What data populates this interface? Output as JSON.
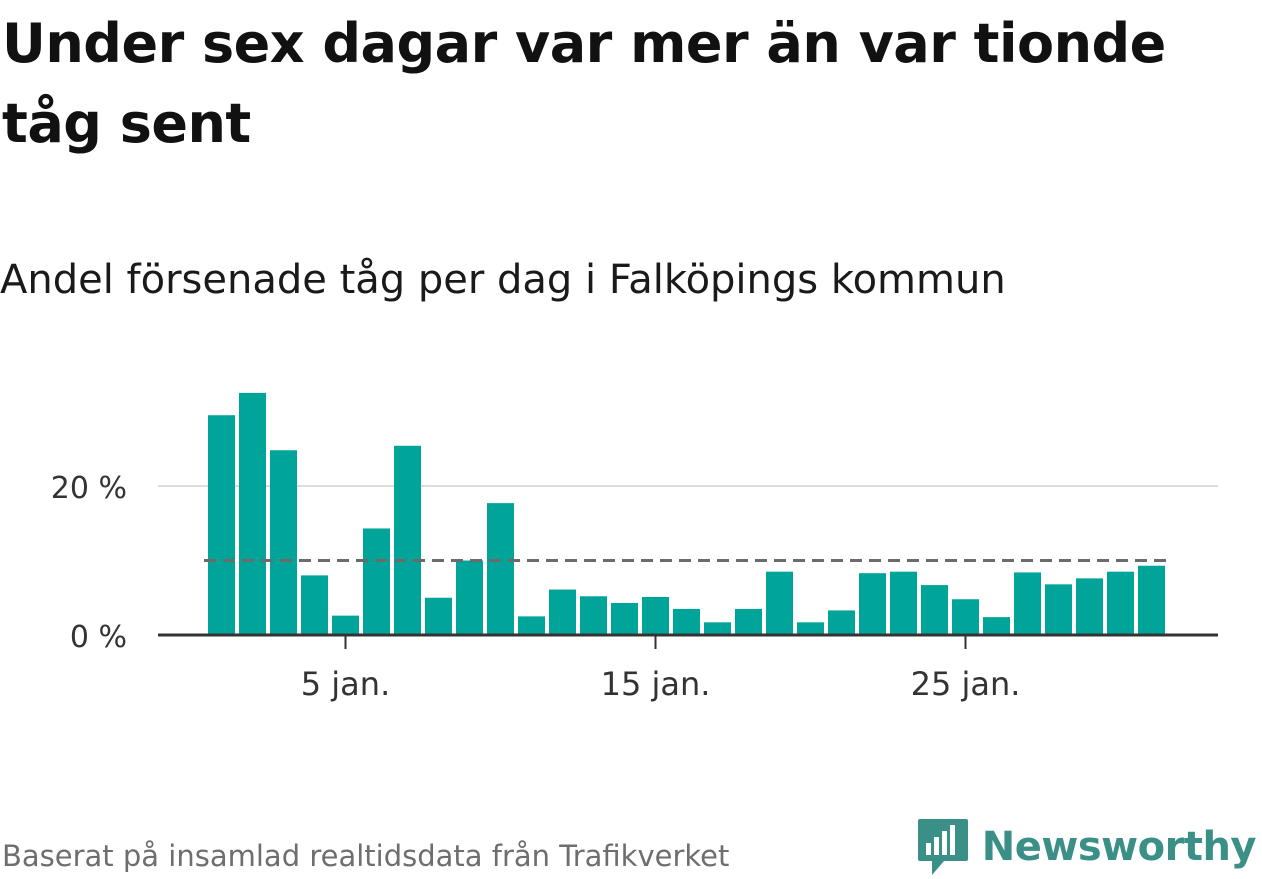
{
  "header": {
    "title": "Under sex dagar var mer än var tionde tåg sent",
    "subtitle": "Andel försenade tåg per dag i Falköpings kommun"
  },
  "footer": {
    "source": "Baserat på insamlad realtidsdata från Trafikverket",
    "brand": "Newsworthy"
  },
  "colors": {
    "bar": "#00a499",
    "reference_line": "#6b6b6b",
    "grid": "#dddddd",
    "axis": "#333333",
    "brand": "#3a8f87"
  },
  "chart_data": {
    "type": "bar",
    "x": [
      "2024-01-01",
      "2024-01-02",
      "2024-01-03",
      "2024-01-04",
      "2024-01-05",
      "2024-01-06",
      "2024-01-07",
      "2024-01-08",
      "2024-01-09",
      "2024-01-10",
      "2024-01-11",
      "2024-01-12",
      "2024-01-13",
      "2024-01-14",
      "2024-01-15",
      "2024-01-16",
      "2024-01-17",
      "2024-01-18",
      "2024-01-19",
      "2024-01-20",
      "2024-01-21",
      "2024-01-22",
      "2024-01-23",
      "2024-01-24",
      "2024-01-25",
      "2024-01-26",
      "2024-01-27",
      "2024-01-28",
      "2024-01-29",
      "2024-01-30",
      "2024-01-31",
      "2024-02-01"
    ],
    "values": [
      29.5,
      32.5,
      24.8,
      8.0,
      2.6,
      14.3,
      25.4,
      5.0,
      10.0,
      17.7,
      2.5,
      6.1,
      5.2,
      4.3,
      5.1,
      3.5,
      1.7,
      3.5,
      8.5,
      1.7,
      3.3,
      8.3,
      8.5,
      6.7,
      4.8,
      2.4,
      8.4,
      6.8,
      7.6,
      8.5,
      9.3,
      null
    ],
    "reference_line": 10,
    "ylim": [
      0,
      35
    ],
    "yticks": [
      {
        "value": 0,
        "label": "0 %"
      },
      {
        "value": 20,
        "label": "20 %"
      }
    ],
    "xticks": [
      {
        "value": "2024-01-05",
        "label": "5 jan."
      },
      {
        "value": "2024-01-15",
        "label": "15 jan."
      },
      {
        "value": "2024-01-25",
        "label": "25 jan."
      }
    ],
    "xlabel": "",
    "ylabel": "",
    "grid": true,
    "legend": "none"
  }
}
